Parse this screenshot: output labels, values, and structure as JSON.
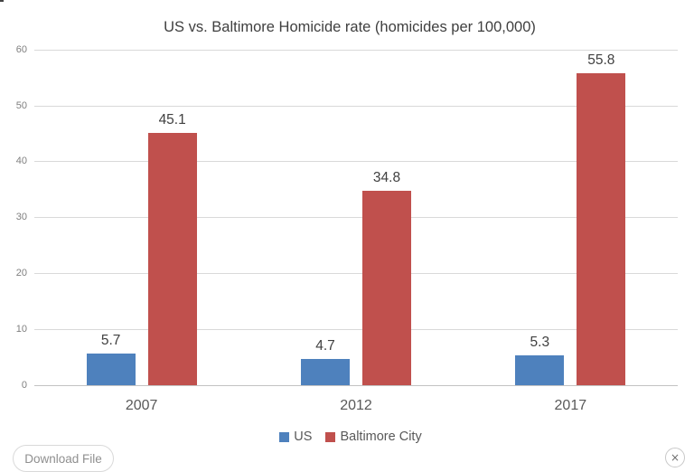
{
  "title": "US vs. Baltimore Homicide rate (homicides per 100,000)",
  "chart_data": {
    "type": "bar",
    "title": "US vs. Baltimore Homicide rate (homicides per 100,000)",
    "categories": [
      "2007",
      "2012",
      "2017"
    ],
    "series": [
      {
        "name": "US",
        "color": "#4e81bd",
        "values": [
          5.7,
          4.7,
          5.3
        ]
      },
      {
        "name": "Baltimore City",
        "color": "#c0504d",
        "values": [
          45.1,
          34.8,
          55.8
        ]
      }
    ],
    "ylim": [
      0,
      60
    ],
    "yticks": [
      0,
      10,
      20,
      30,
      40,
      50,
      60
    ],
    "grid": true,
    "legend_position": "bottom",
    "data_labels": true
  },
  "buttons": {
    "download": "Download File"
  },
  "icons": {
    "close": "×"
  }
}
